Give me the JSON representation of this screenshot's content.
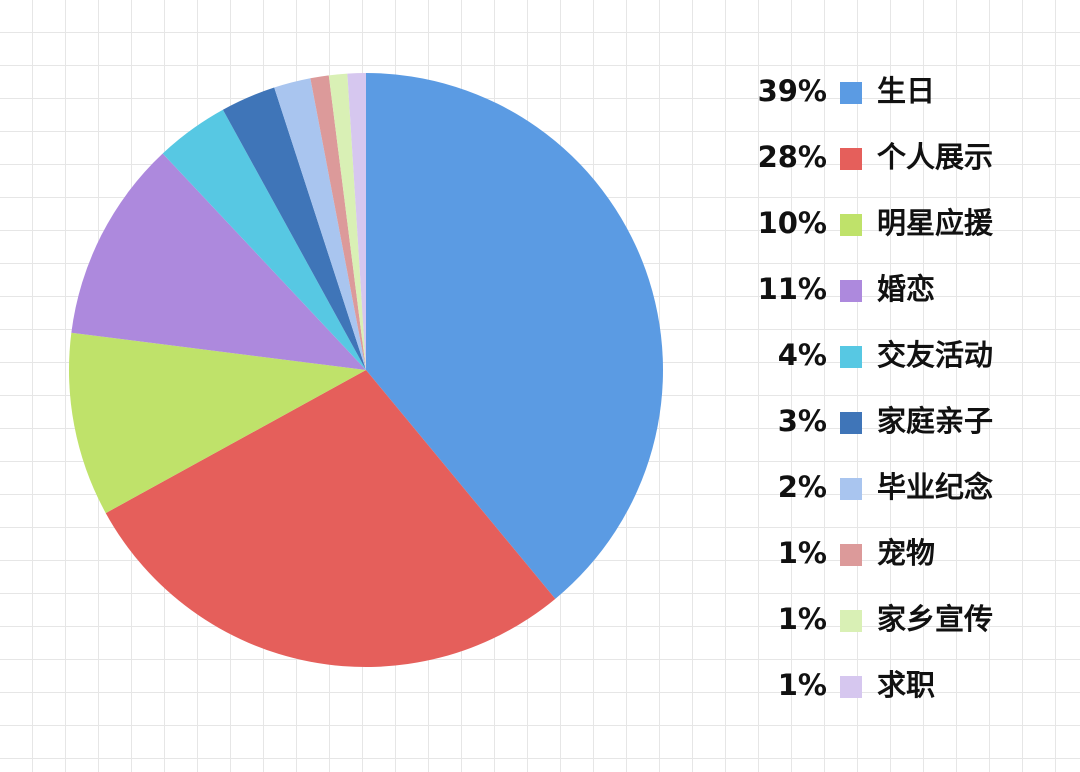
{
  "chart_data": {
    "type": "pie",
    "categories": [
      "生日",
      "个人展示",
      "明星应援",
      "婚恋",
      "交友活动",
      "家庭亲子",
      "毕业纪念",
      "宠物",
      "家乡宣传",
      "求职"
    ],
    "values": [
      39,
      28,
      10,
      11,
      4,
      3,
      2,
      1,
      1,
      1
    ],
    "value_labels": [
      "39%",
      "28%",
      "10%",
      "11%",
      "4%",
      "3%",
      "2%",
      "1%",
      "1%",
      "1%"
    ],
    "colors": [
      "#5b9be3",
      "#e55f5b",
      "#bfe26a",
      "#ad89dd",
      "#57c8e3",
      "#3f75b8",
      "#a9c5ef",
      "#dc9a9a",
      "#d9f0b5",
      "#d6c7ef"
    ],
    "legend": "right"
  }
}
